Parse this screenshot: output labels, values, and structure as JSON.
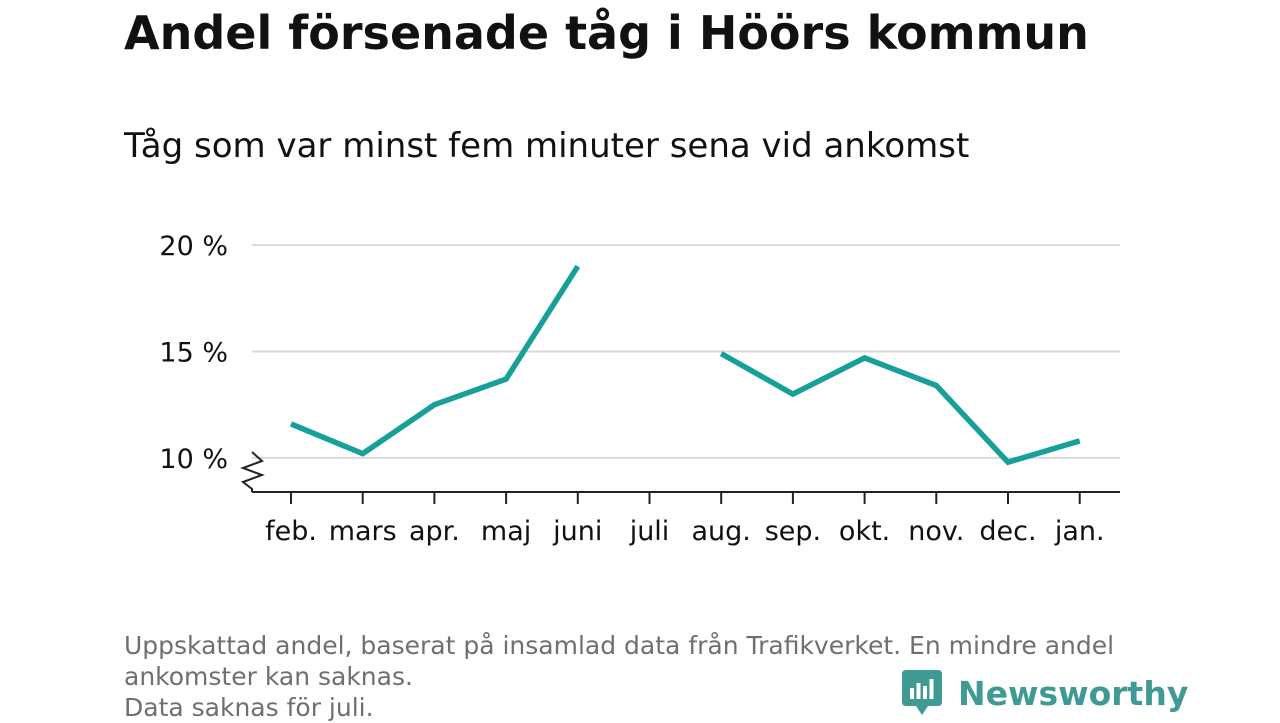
{
  "title": "Andel försenade tåg i Höörs kommun",
  "subtitle": "Tåg som var minst fem minuter sena vid ankomst",
  "footnote": {
    "lines": [
      "Uppskattad andel, baserat på insamlad data från Trafikverket. En mindre andel",
      "ankomster kan saknas.",
      "Data saknas för juli."
    ]
  },
  "brand": {
    "name": "Newsworthy",
    "icon": "newsworthy-logo-icon",
    "color": "#3f9a93"
  },
  "colors": {
    "line": "#16a099",
    "grid": "#d9d9d9",
    "axis": "#222222",
    "text": "#111111",
    "muted": "#6f6f6f"
  },
  "chart_data": {
    "type": "line",
    "categories": [
      "feb.",
      "mars",
      "apr.",
      "maj",
      "juni",
      "juli",
      "aug.",
      "sep.",
      "okt.",
      "nov.",
      "dec.",
      "jan."
    ],
    "series": [
      {
        "values": [
          11.6,
          10.2,
          12.5,
          13.7,
          19.0,
          null,
          14.9,
          13.0,
          14.7,
          13.4,
          9.8,
          10.8
        ]
      }
    ],
    "ylim": [
      8.4,
      20
    ],
    "yticks": [
      10,
      15,
      20
    ],
    "ytick_labels": [
      "10 %",
      "15 %",
      "20 %"
    ],
    "y_axis_break": true,
    "grid": true,
    "xlabel": "",
    "ylabel": ""
  }
}
